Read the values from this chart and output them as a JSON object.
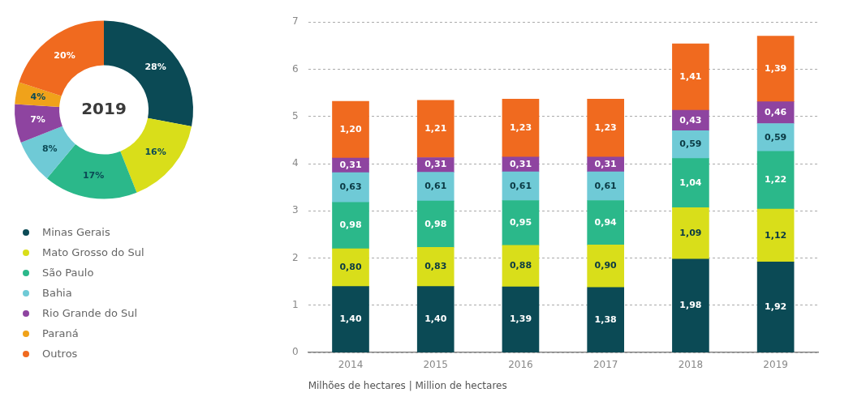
{
  "chart_data": [
    {
      "type": "donut",
      "title": "2019",
      "categories": [
        "Minas Gerais",
        "Mato Grosso do Sul",
        "São Paulo",
        "Bahia",
        "Rio Grande do Sul",
        "Paraná",
        "Outros"
      ],
      "values": [
        28,
        16,
        17,
        8,
        7,
        4,
        20
      ],
      "value_labels": [
        "28%",
        "16%",
        "17%",
        "8%",
        "7%",
        "4%",
        "20%"
      ],
      "colors": [
        "#0b4a55",
        "#d9de1a",
        "#2bb88a",
        "#6fcad6",
        "#8e44a0",
        "#f0a21a",
        "#f06a1f"
      ],
      "legend": "bottom"
    },
    {
      "type": "bar",
      "stacked": true,
      "categories": [
        "2014",
        "2015",
        "2016",
        "2017",
        "2018",
        "2019"
      ],
      "xlabel": "Milhões de hectares | Million de hectares",
      "ylim": [
        0,
        7
      ],
      "yticks": [
        0,
        1,
        2,
        3,
        4,
        5,
        6,
        7
      ],
      "grid": "y",
      "legend": false,
      "series": [
        {
          "color": "#0b4a55",
          "values": [
            1.4,
            1.4,
            1.39,
            1.38,
            1.98,
            1.92
          ],
          "value_labels": [
            "1,40",
            "1,40",
            "1,39",
            "1,38",
            "1,98",
            "1,92"
          ]
        },
        {
          "color": "#d9de1a",
          "values": [
            0.8,
            0.83,
            0.88,
            0.9,
            1.09,
            1.12
          ],
          "value_labels": [
            "0,80",
            "0,83",
            "0,88",
            "0,90",
            "1,09",
            "1,12"
          ]
        },
        {
          "color": "#2bb88a",
          "values": [
            0.98,
            0.98,
            0.95,
            0.94,
            1.04,
            1.22
          ],
          "value_labels": [
            "0,98",
            "0,98",
            "0,95",
            "0,94",
            "1,04",
            "1,22"
          ]
        },
        {
          "color": "#6fcad6",
          "values": [
            0.63,
            0.61,
            0.61,
            0.61,
            0.59,
            0.59
          ],
          "value_labels": [
            "0,63",
            "0,61",
            "0,61",
            "0,61",
            "0,59",
            "0,59"
          ]
        },
        {
          "color": "#8e44a0",
          "values": [
            0.31,
            0.31,
            0.31,
            0.31,
            0.43,
            0.46
          ],
          "value_labels": [
            "0,31",
            "0,31",
            "0,31",
            "0,31",
            "0,43",
            "0,46"
          ]
        },
        {
          "color": "#f06a1f",
          "values": [
            1.2,
            1.21,
            1.23,
            1.23,
            1.41,
            1.39
          ],
          "value_labels": [
            "1,20",
            "1,21",
            "1,23",
            "1,23",
            "1,41",
            "1,39"
          ]
        }
      ]
    }
  ]
}
